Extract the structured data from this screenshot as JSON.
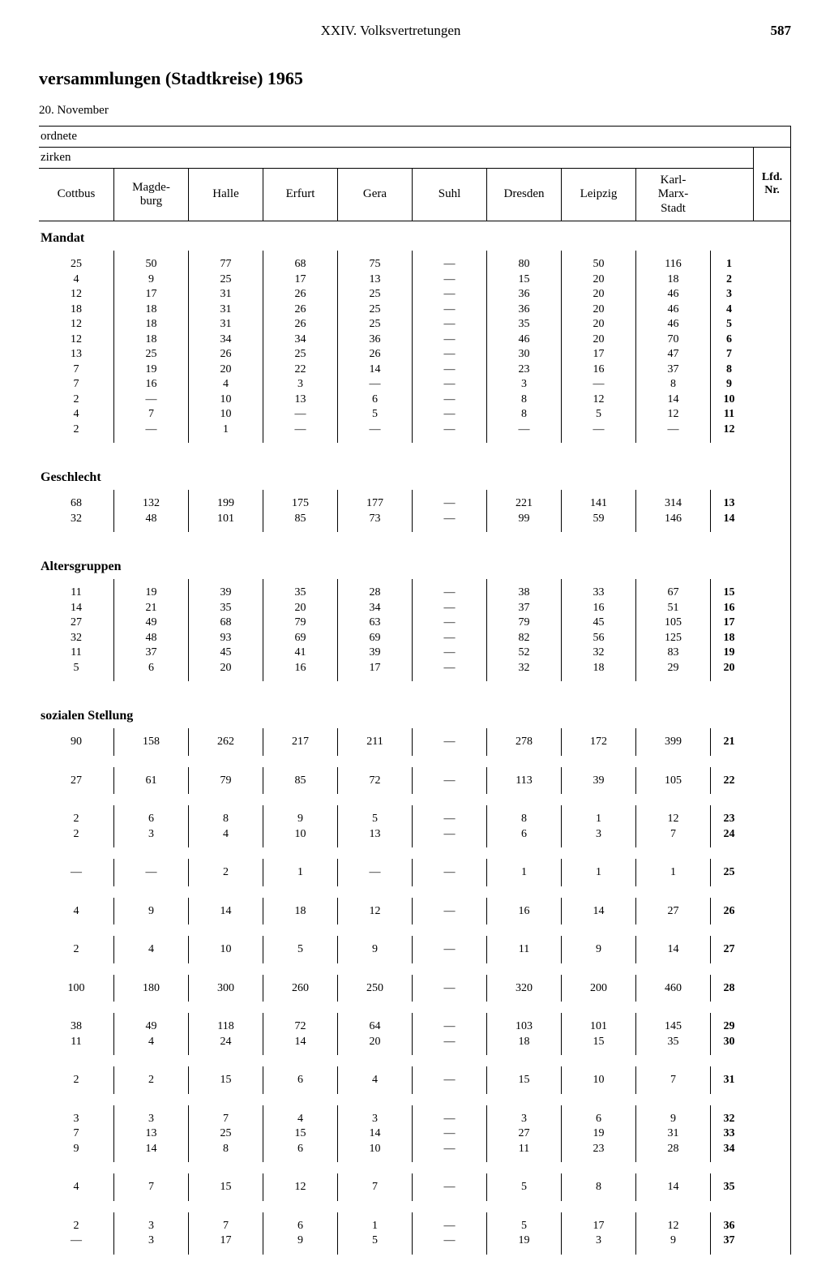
{
  "page": {
    "chapter": "XXIV. Volksvertretungen",
    "number": "587",
    "title": "versammlungen (Stadtkreise) 1965",
    "date": "20. November"
  },
  "headers": {
    "row1": "ordnete",
    "row2": "zirken",
    "lfd": "Lfd.\nNr.",
    "cols": [
      "Cottbus",
      "Magde-\nburg",
      "Halle",
      "Erfurt",
      "Gera",
      "Suhl",
      "Dresden",
      "Leipzig",
      "Karl-\nMarx-\nStadt"
    ]
  },
  "sections": {
    "mandat": {
      "label": "Mandat",
      "lfd": [
        "1",
        "2",
        "3",
        "4",
        "5",
        "6",
        "7",
        "8",
        "9",
        "10",
        "11",
        "12"
      ],
      "cols": [
        [
          "25",
          "4",
          "12",
          "18",
          "12",
          "12",
          "13",
          "7",
          "7",
          "2",
          "4",
          "2"
        ],
        [
          "50",
          "9",
          "17",
          "18",
          "18",
          "18",
          "25",
          "19",
          "16",
          "—",
          "7",
          "—"
        ],
        [
          "77",
          "25",
          "31",
          "31",
          "31",
          "34",
          "26",
          "20",
          "4",
          "10",
          "10",
          "1"
        ],
        [
          "68",
          "17",
          "26",
          "26",
          "26",
          "34",
          "25",
          "22",
          "3",
          "13",
          "—",
          "—"
        ],
        [
          "75",
          "13",
          "25",
          "25",
          "25",
          "36",
          "26",
          "14",
          "—",
          "6",
          "5",
          "—"
        ],
        [
          "—",
          "—",
          "—",
          "—",
          "—",
          "—",
          "—",
          "—",
          "—",
          "—",
          "—",
          "—"
        ],
        [
          "80",
          "15",
          "36",
          "36",
          "35",
          "46",
          "30",
          "23",
          "3",
          "8",
          "8",
          "—"
        ],
        [
          "50",
          "20",
          "20",
          "20",
          "20",
          "20",
          "17",
          "16",
          "—",
          "12",
          "5",
          "—"
        ],
        [
          "116",
          "18",
          "46",
          "46",
          "46",
          "70",
          "47",
          "37",
          "8",
          "14",
          "12",
          "—"
        ]
      ]
    },
    "geschlecht": {
      "label": "Geschlecht",
      "lfd": [
        "13",
        "14"
      ],
      "cols": [
        [
          "68",
          "32"
        ],
        [
          "132",
          "48"
        ],
        [
          "199",
          "101"
        ],
        [
          "175",
          "85"
        ],
        [
          "177",
          "73"
        ],
        [
          "—",
          "—"
        ],
        [
          "221",
          "99"
        ],
        [
          "141",
          "59"
        ],
        [
          "314",
          "146"
        ]
      ]
    },
    "alter": {
      "label": "Altersgruppen",
      "lfd": [
        "15",
        "16",
        "17",
        "18",
        "19",
        "20"
      ],
      "cols": [
        [
          "11",
          "14",
          "27",
          "32",
          "11",
          "5"
        ],
        [
          "19",
          "21",
          "49",
          "48",
          "37",
          "6"
        ],
        [
          "39",
          "35",
          "68",
          "93",
          "45",
          "20"
        ],
        [
          "35",
          "20",
          "79",
          "69",
          "41",
          "16"
        ],
        [
          "28",
          "34",
          "63",
          "69",
          "39",
          "17"
        ],
        [
          "—",
          "—",
          "—",
          "—",
          "—",
          "—"
        ],
        [
          "38",
          "37",
          "79",
          "82",
          "52",
          "32"
        ],
        [
          "33",
          "16",
          "45",
          "56",
          "32",
          "18"
        ],
        [
          "67",
          "51",
          "105",
          "125",
          "83",
          "29"
        ]
      ]
    },
    "sozial": {
      "label": "sozialen Stellung",
      "groups": [
        {
          "lfd": [
            "21"
          ],
          "cols": [
            [
              "90"
            ],
            [
              "158"
            ],
            [
              "262"
            ],
            [
              "217"
            ],
            [
              "211"
            ],
            [
              "—"
            ],
            [
              "278"
            ],
            [
              "172"
            ],
            [
              "399"
            ]
          ]
        },
        {
          "lfd": [
            "22"
          ],
          "cols": [
            [
              "27"
            ],
            [
              "61"
            ],
            [
              "79"
            ],
            [
              "85"
            ],
            [
              "72"
            ],
            [
              "—"
            ],
            [
              "113"
            ],
            [
              "39"
            ],
            [
              "105"
            ]
          ]
        },
        {
          "lfd": [
            "23",
            "24"
          ],
          "cols": [
            [
              "2",
              "2"
            ],
            [
              "6",
              "3"
            ],
            [
              "8",
              "4"
            ],
            [
              "9",
              "10"
            ],
            [
              "5",
              "13"
            ],
            [
              "—",
              "—"
            ],
            [
              "8",
              "6"
            ],
            [
              "1",
              "3"
            ],
            [
              "12",
              "7"
            ]
          ]
        },
        {
          "lfd": [
            "25"
          ],
          "cols": [
            [
              "—"
            ],
            [
              "—"
            ],
            [
              "2"
            ],
            [
              "1"
            ],
            [
              "—"
            ],
            [
              "—"
            ],
            [
              "1"
            ],
            [
              "1"
            ],
            [
              "1"
            ]
          ]
        },
        {
          "lfd": [
            "26"
          ],
          "cols": [
            [
              "4"
            ],
            [
              "9"
            ],
            [
              "14"
            ],
            [
              "18"
            ],
            [
              "12"
            ],
            [
              "—"
            ],
            [
              "16"
            ],
            [
              "14"
            ],
            [
              "27"
            ]
          ]
        },
        {
          "lfd": [
            "27"
          ],
          "cols": [
            [
              "2"
            ],
            [
              "4"
            ],
            [
              "10"
            ],
            [
              "5"
            ],
            [
              "9"
            ],
            [
              "—"
            ],
            [
              "11"
            ],
            [
              "9"
            ],
            [
              "14"
            ]
          ]
        },
        {
          "lfd": [
            "28"
          ],
          "cols": [
            [
              "100"
            ],
            [
              "180"
            ],
            [
              "300"
            ],
            [
              "260"
            ],
            [
              "250"
            ],
            [
              "—"
            ],
            [
              "320"
            ],
            [
              "200"
            ],
            [
              "460"
            ]
          ]
        },
        {
          "lfd": [
            "29",
            "30"
          ],
          "cols": [
            [
              "38",
              "11"
            ],
            [
              "49",
              "4"
            ],
            [
              "118",
              "24"
            ],
            [
              "72",
              "14"
            ],
            [
              "64",
              "20"
            ],
            [
              "—",
              "—"
            ],
            [
              "103",
              "18"
            ],
            [
              "101",
              "15"
            ],
            [
              "145",
              "35"
            ]
          ]
        },
        {
          "lfd": [
            "31"
          ],
          "cols": [
            [
              "2"
            ],
            [
              "2"
            ],
            [
              "15"
            ],
            [
              "6"
            ],
            [
              "4"
            ],
            [
              "—"
            ],
            [
              "15"
            ],
            [
              "10"
            ],
            [
              "7"
            ]
          ]
        },
        {
          "lfd": [
            "32",
            "33",
            "34"
          ],
          "cols": [
            [
              "3",
              "7",
              "9"
            ],
            [
              "3",
              "13",
              "14"
            ],
            [
              "7",
              "25",
              "8"
            ],
            [
              "4",
              "15",
              "6"
            ],
            [
              "3",
              "14",
              "10"
            ],
            [
              "—",
              "—",
              "—"
            ],
            [
              "3",
              "27",
              "11"
            ],
            [
              "6",
              "19",
              "23"
            ],
            [
              "9",
              "31",
              "28"
            ]
          ]
        },
        {
          "lfd": [
            "35"
          ],
          "cols": [
            [
              "4"
            ],
            [
              "7"
            ],
            [
              "15"
            ],
            [
              "12"
            ],
            [
              "7"
            ],
            [
              "—"
            ],
            [
              "5"
            ],
            [
              "8"
            ],
            [
              "14"
            ]
          ]
        },
        {
          "lfd": [
            "36",
            "37"
          ],
          "cols": [
            [
              "2",
              "—"
            ],
            [
              "3",
              "3"
            ],
            [
              "7",
              "17"
            ],
            [
              "6",
              "9"
            ],
            [
              "1",
              "5"
            ],
            [
              "—",
              "—"
            ],
            [
              "5",
              "19"
            ],
            [
              "17",
              "3"
            ],
            [
              "12",
              "9"
            ]
          ]
        }
      ]
    }
  }
}
